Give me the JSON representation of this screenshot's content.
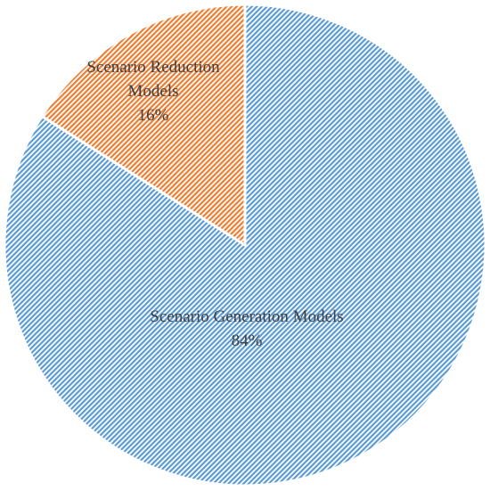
{
  "chart_data": {
    "type": "pie",
    "categories": [
      "Scenario Generation Models",
      "Scenario Reduction Models"
    ],
    "values": [
      84,
      16
    ],
    "value_labels": [
      "84%",
      "16%"
    ],
    "colors": [
      "#5b9bd5",
      "#ed7d31"
    ]
  }
}
